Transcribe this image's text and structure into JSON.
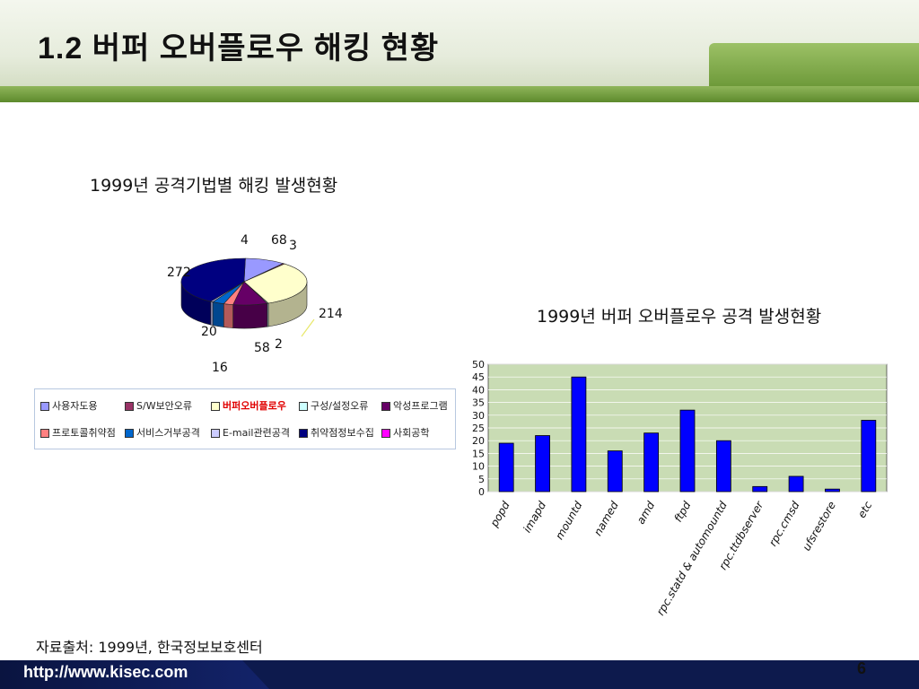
{
  "header": {
    "title": "1.2 버퍼 오버플로우 해킹 현황"
  },
  "chart_data": [
    {
      "type": "pie",
      "title": "1999년 공격기법별 해킹 발생현황",
      "slices": [
        {
          "label": "사용자도용",
          "value": 68,
          "color": "#9999ff"
        },
        {
          "label": "S/W보안오류",
          "value": 3,
          "color": "#993366"
        },
        {
          "label": "버퍼오버플로우",
          "value": 214,
          "color": "#ffffcc"
        },
        {
          "label": "구성/설정오류",
          "value": 2,
          "color": "#ccffff"
        },
        {
          "label": "악성프로그램",
          "value": 58,
          "color": "#660066"
        },
        {
          "label": "프로토콜취약점",
          "value": 16,
          "color": "#ff8080"
        },
        {
          "label": "서비스거부공격",
          "value": 20,
          "color": "#0066cc"
        },
        {
          "label": "E-mail관련공격",
          "value": 4,
          "color": "#ccccff"
        },
        {
          "label": "취약점정보수집",
          "value": 272,
          "color": "#000080"
        },
        {
          "label": "사회공학",
          "value": 0,
          "color": "#ff00ff"
        }
      ],
      "data_labels": [
        "4",
        "68",
        "3",
        "214",
        "2",
        "58",
        "16",
        "20",
        "272"
      ],
      "legend": "bottom"
    },
    {
      "type": "bar",
      "title": "1999년 버퍼 오버플로우 공격 발생현황",
      "categories": [
        "popd",
        "imapd",
        "mountd",
        "named",
        "amd",
        "ftpd",
        "rpc.statd & automountd",
        "rpc.ttdbserver",
        "rpc.cmsd",
        "ufsrestore",
        "etc"
      ],
      "values": [
        19,
        22,
        45,
        16,
        23,
        32,
        20,
        2,
        6,
        1,
        28
      ],
      "ylim": [
        0,
        50
      ],
      "yticks": [
        "0",
        "5",
        "10",
        "15",
        "20",
        "25",
        "30",
        "35",
        "40",
        "45",
        "50"
      ],
      "bar_color": "#0000ff",
      "plot_bg": "#c9dcb4",
      "grid": true
    }
  ],
  "source": "자료출처:  1999년,  한국정보보호센터",
  "footer": {
    "url": "http://www.kisec.com",
    "page": "6"
  }
}
